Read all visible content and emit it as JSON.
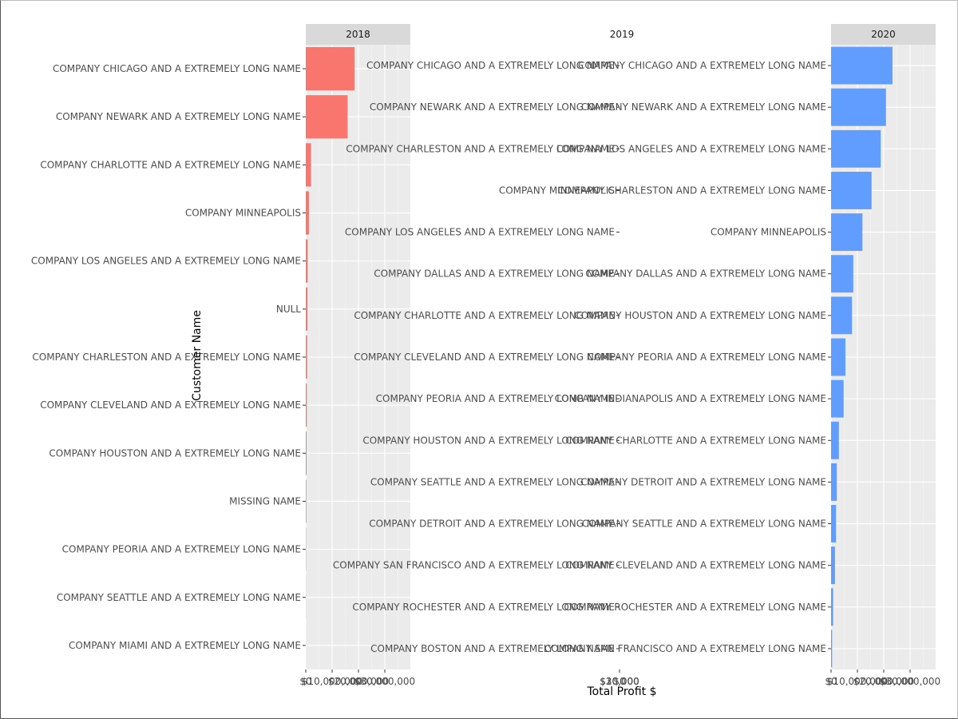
{
  "chart_data": {
    "type": "bar",
    "orientation": "horizontal",
    "ylabel": "Customer Name",
    "xlabel": "Total Profit $",
    "grid": true,
    "colors": {
      "2018": "#F8766D",
      "2019": "#00BA38",
      "2020": "#619CFF",
      "panel_bg": "#EBEBEB",
      "strip_bg": "#D9D9D9"
    },
    "panels": [
      {
        "strip": "2018",
        "show_strip_bg": true,
        "show_panel_bg": true,
        "x_ticks": [
          "$0",
          "$10,000,000",
          "$20,000,000",
          "$30,000,000"
        ],
        "x_tick_values": [
          0,
          10000000,
          20000000,
          30000000
        ],
        "xlim": [
          0,
          40000000
        ],
        "categories": [
          "COMPANY CHICAGO AND A EXTREMELY LONG NAME",
          "COMPANY NEWARK AND A EXTREMELY LONG NAME",
          "COMPANY CHARLOTTE AND A EXTREMELY LONG NAME",
          "COMPANY MINNEAPOLIS",
          "COMPANY LOS ANGELES AND A EXTREMELY LONG NAME",
          "NULL",
          "COMPANY CHARLESTON AND A EXTREMELY LONG NAME",
          "COMPANY CLEVELAND AND A EXTREMELY LONG NAME",
          "COMPANY HOUSTON AND A EXTREMELY LONG NAME",
          "MISSING NAME",
          "COMPANY PEORIA AND A EXTREMELY LONG NAME",
          "COMPANY SEATTLE AND A EXTREMELY LONG NAME",
          "COMPANY MIAMI AND A EXTREMELY LONG NAME"
        ],
        "values": [
          18700000,
          16000000,
          2000000,
          1200000,
          700000,
          600000,
          500000,
          400000,
          300000,
          200000,
          100000,
          50000,
          20000
        ]
      },
      {
        "strip": "2019",
        "show_strip_bg": false,
        "show_panel_bg": false,
        "x_ticks": [
          "$0",
          "$10,000",
          "$20,000",
          "$30,000"
        ],
        "x_tick_values": [
          0,
          10000,
          20000,
          30000
        ],
        "xlim": [
          0,
          10
        ],
        "categories": [
          "COMPANY CHICAGO AND A EXTREMELY LONG NAME",
          "COMPANY NEWARK AND A EXTREMELY LONG NAME",
          "COMPANY CHARLESTON AND A EXTREMELY LONG NAME",
          "COMPANY MINNEAPOLIS",
          "COMPANY LOS ANGELES AND A EXTREMELY LONG NAME",
          "COMPANY DALLAS AND A EXTREMELY LONG NAME",
          "COMPANY CHARLOTTE AND A EXTREMELY LONG NAME",
          "COMPANY CLEVELAND AND A EXTREMELY LONG NAME",
          "COMPANY PEORIA AND A EXTREMELY LONG NAME",
          "COMPANY HOUSTON AND A EXTREMELY LONG NAME",
          "COMPANY SEATTLE AND A EXTREMELY LONG NAME",
          "COMPANY DETROIT AND A EXTREMELY LONG NAME",
          "COMPANY SAN FRANCISCO AND A EXTREMELY LONG NAME",
          "COMPANY ROCHESTER AND A EXTREMELY LONG NAME",
          "COMPANY BOSTON AND A EXTREMELY LONG NAME"
        ],
        "values": [
          0,
          0,
          0,
          0,
          0,
          0,
          0,
          0,
          0,
          0,
          0,
          0,
          0,
          0,
          0
        ]
      },
      {
        "strip": "2020",
        "show_strip_bg": true,
        "show_panel_bg": true,
        "x_ticks": [
          "$0",
          "$10,000,000",
          "$20,000,000",
          "$30,000,000"
        ],
        "x_tick_values": [
          0,
          10000000,
          20000000,
          30000000
        ],
        "xlim": [
          0,
          40000000
        ],
        "categories": [
          "COMPANY CHICAGO AND A EXTREMELY LONG NAME",
          "COMPANY NEWARK AND A EXTREMELY LONG NAME",
          "COMPANY LOS ANGELES AND A EXTREMELY LONG NAME",
          "COMPANY CHARLESTON AND A EXTREMELY LONG NAME",
          "COMPANY MINNEAPOLIS",
          "COMPANY DALLAS AND A EXTREMELY LONG NAME",
          "COMPANY HOUSTON AND A EXTREMELY LONG NAME",
          "COMPANY PEORIA AND A EXTREMELY LONG NAME",
          "COMPANY INDIANAPOLIS AND A EXTREMELY LONG NAME",
          "COMPANY CHARLOTTE AND A EXTREMELY LONG NAME",
          "COMPANY DETROIT AND A EXTREMELY LONG NAME",
          "COMPANY SEATTLE AND A EXTREMELY LONG NAME",
          "COMPANY CLEVELAND AND A EXTREMELY LONG NAME",
          "COMPANY ROCHESTER AND A EXTREMELY LONG NAME",
          "COMPANY SAN FRANCISCO AND A EXTREMELY LONG NAME"
        ],
        "values": [
          23500000,
          21000000,
          19000000,
          15500000,
          12000000,
          8500000,
          8000000,
          5500000,
          4800000,
          3000000,
          2200000,
          1900000,
          1500000,
          800000,
          400000
        ]
      }
    ]
  }
}
